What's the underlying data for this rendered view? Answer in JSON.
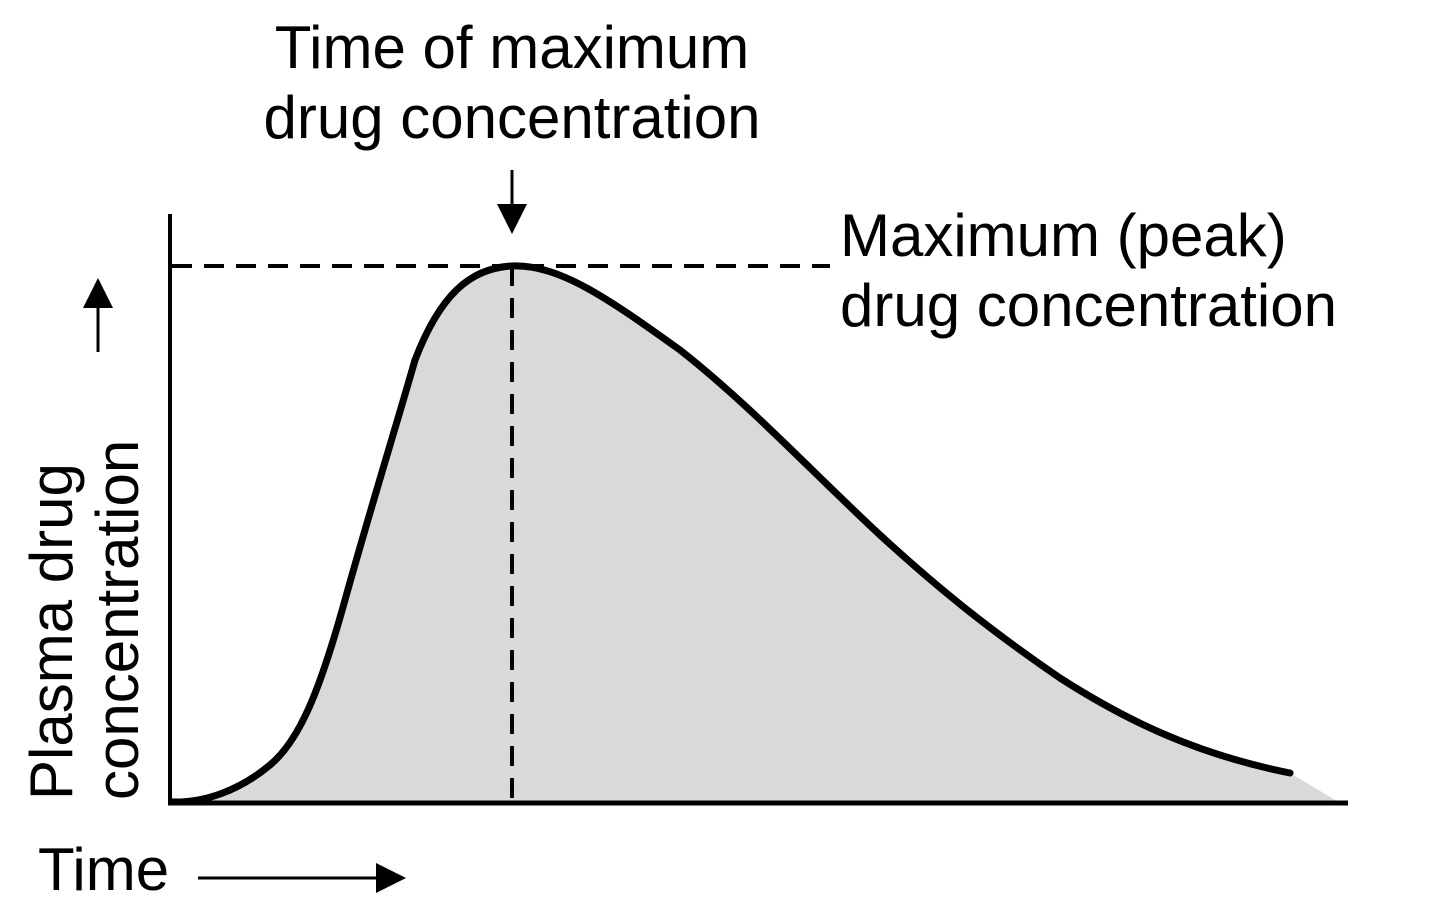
{
  "diagram": {
    "top_annotation": {
      "line1": "Time of maximum",
      "line2": "drug concentration"
    },
    "peak_annotation": {
      "line1": "Maximum (peak)",
      "line2": "drug concentration"
    },
    "y_axis_label": {
      "line1": "Plasma drug",
      "line2": "concentration"
    },
    "x_axis_label": "Time",
    "colors": {
      "curve": "#000000",
      "area_fill": "#d9d9d9",
      "axis": "#000000",
      "guide_lines": "#000000",
      "background": "#ffffff"
    }
  }
}
